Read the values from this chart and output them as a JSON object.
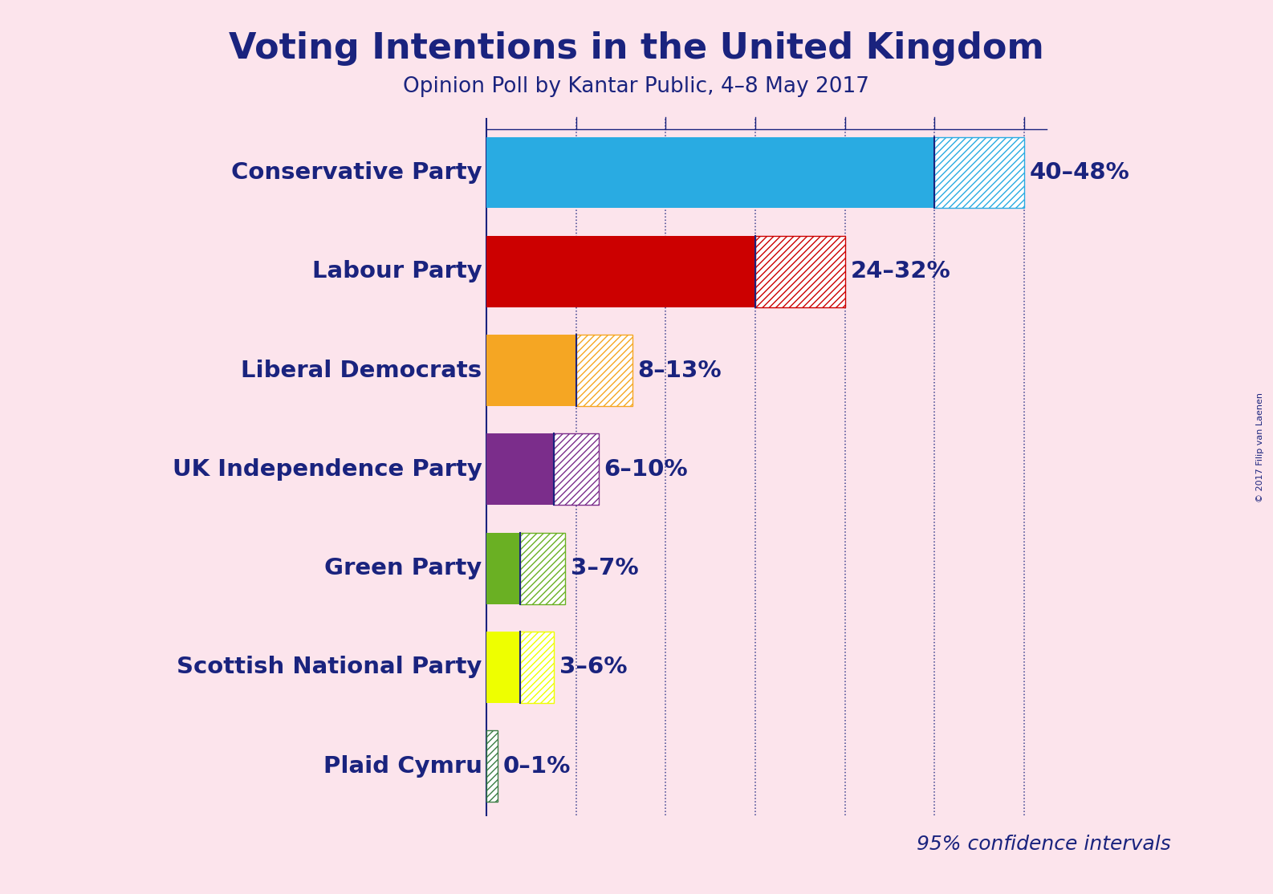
{
  "title": "Voting Intentions in the United Kingdom",
  "subtitle": "Opinion Poll by Kantar Public, 4–8 May 2017",
  "copyright": "© 2017 Filip van Laenen",
  "background_color": "#fce4ec",
  "title_color": "#1a237e",
  "parties": [
    "Conservative Party",
    "Labour Party",
    "Liberal Democrats",
    "UK Independence Party",
    "Green Party",
    "Scottish National Party",
    "Plaid Cymru"
  ],
  "low": [
    40,
    24,
    8,
    6,
    3,
    3,
    0
  ],
  "high": [
    48,
    32,
    13,
    10,
    7,
    6,
    1
  ],
  "colors": [
    "#29ABE2",
    "#CC0000",
    "#F5A623",
    "#7B2D8B",
    "#6AB023",
    "#EEFF00",
    "#3A7D44"
  ],
  "labels": [
    "40–48%",
    "24–32%",
    "8–13%",
    "6–10%",
    "3–7%",
    "3–6%",
    "0–1%"
  ],
  "label_fontsize": 21,
  "party_fontsize": 21,
  "title_fontsize": 32,
  "subtitle_fontsize": 19,
  "confidence_text": "95% confidence intervals",
  "confidence_fontsize": 18,
  "dotted_line_color": "#1a237e",
  "dotted_positions": [
    8,
    16,
    24,
    32,
    40,
    48
  ],
  "bar_height": 0.72,
  "data_max": 50
}
